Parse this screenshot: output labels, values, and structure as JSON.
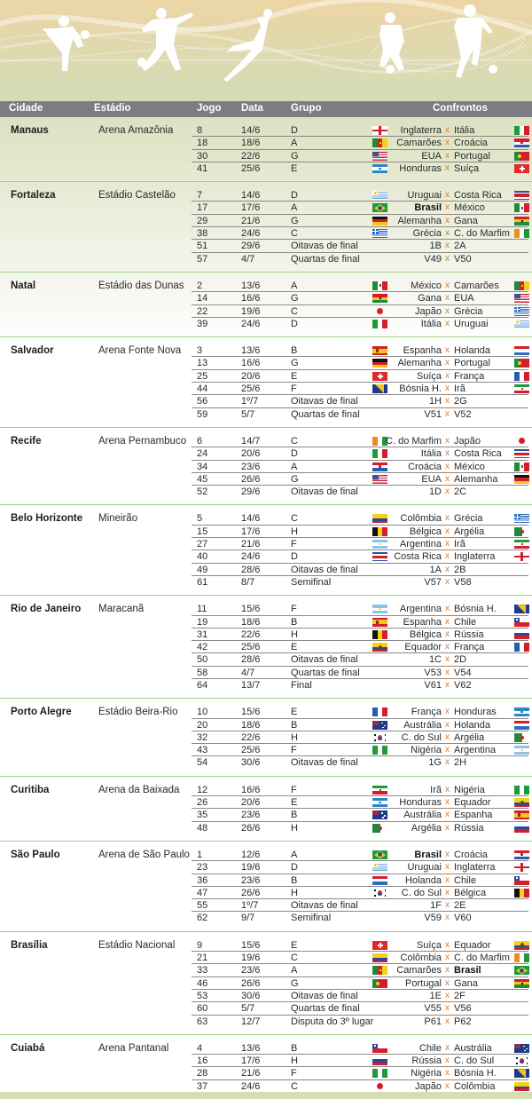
{
  "header": {
    "columns": [
      "Cidade",
      "Estádio",
      "Jogo",
      "Data",
      "Grupo",
      "Confrontos"
    ]
  },
  "vs_label": "x",
  "colors": {
    "header_bg": "#7c7c81",
    "separator": "#9fcf86",
    "vs": "#e07a2a",
    "row_line": "#8a8a8a"
  },
  "venues": [
    {
      "city": "Manaus",
      "stadium": "Arena Amazônia",
      "matches": [
        {
          "jogo": "8",
          "data": "14/6",
          "grupo": "D",
          "home": "Inglaterra",
          "away": "Itália",
          "home_flag": "england",
          "away_flag": "italy"
        },
        {
          "jogo": "18",
          "data": "18/6",
          "grupo": "A",
          "home": "Camarões",
          "away": "Croácia",
          "home_flag": "cameroon",
          "away_flag": "croatia"
        },
        {
          "jogo": "30",
          "data": "22/6",
          "grupo": "G",
          "home": "EUA",
          "away": "Portugal",
          "home_flag": "usa",
          "away_flag": "portugal"
        },
        {
          "jogo": "41",
          "data": "25/6",
          "grupo": "E",
          "home": "Honduras",
          "away": "Suíça",
          "home_flag": "honduras",
          "away_flag": "switzerland"
        }
      ]
    },
    {
      "city": "Fortaleza",
      "stadium": "Estádio Castelão",
      "matches": [
        {
          "jogo": "7",
          "data": "14/6",
          "grupo": "D",
          "home": "Uruguai",
          "away": "Costa Rica",
          "home_flag": "uruguay",
          "away_flag": "costarica"
        },
        {
          "jogo": "17",
          "data": "17/6",
          "grupo": "A",
          "home": "Brasil",
          "away": "México",
          "home_flag": "brazil",
          "away_flag": "mexico",
          "bold": "home"
        },
        {
          "jogo": "29",
          "data": "21/6",
          "grupo": "G",
          "home": "Alemanha",
          "away": "Gana",
          "home_flag": "germany",
          "away_flag": "ghana"
        },
        {
          "jogo": "38",
          "data": "24/6",
          "grupo": "C",
          "home": "Grécia",
          "away": "C. do Marfim",
          "home_flag": "greece",
          "away_flag": "ivorycoast"
        },
        {
          "jogo": "51",
          "data": "29/6",
          "grupo": "Oitavas de final",
          "home": "1B",
          "away": "2A"
        },
        {
          "jogo": "57",
          "data": "4/7",
          "grupo": "Quartas de final",
          "home": "V49",
          "away": "V50"
        }
      ]
    },
    {
      "city": "Natal",
      "stadium": "Estádio das Dunas",
      "matches": [
        {
          "jogo": "2",
          "data": "13/6",
          "grupo": "A",
          "home": "México",
          "away": "Camarões",
          "home_flag": "mexico",
          "away_flag": "cameroon"
        },
        {
          "jogo": "14",
          "data": "16/6",
          "grupo": "G",
          "home": "Gana",
          "away": "EUA",
          "home_flag": "ghana",
          "away_flag": "usa"
        },
        {
          "jogo": "22",
          "data": "19/6",
          "grupo": "C",
          "home": "Japão",
          "away": "Grécia",
          "home_flag": "japan",
          "away_flag": "greece"
        },
        {
          "jogo": "39",
          "data": "24/6",
          "grupo": "D",
          "home": "Itália",
          "away": "Uruguai",
          "home_flag": "italy",
          "away_flag": "uruguay"
        }
      ]
    },
    {
      "city": "Salvador",
      "stadium": "Arena Fonte Nova",
      "matches": [
        {
          "jogo": "3",
          "data": "13/6",
          "grupo": "B",
          "home": "Espanha",
          "away": "Holanda",
          "home_flag": "spain",
          "away_flag": "netherlands"
        },
        {
          "jogo": "13",
          "data": "16/6",
          "grupo": "G",
          "home": "Alemanha",
          "away": "Portugal",
          "home_flag": "germany",
          "away_flag": "portugal"
        },
        {
          "jogo": "25",
          "data": "20/6",
          "grupo": "E",
          "home": "Suíça",
          "away": "França",
          "home_flag": "switzerland",
          "away_flag": "france"
        },
        {
          "jogo": "44",
          "data": "25/6",
          "grupo": "F",
          "home": "Bósnia H.",
          "away": "Irã",
          "home_flag": "bosnia",
          "away_flag": "iran"
        },
        {
          "jogo": "56",
          "data": "1º/7",
          "grupo": "Oitavas de final",
          "home": "1H",
          "away": "2G"
        },
        {
          "jogo": "59",
          "data": "5/7",
          "grupo": "Quartas de final",
          "home": "V51",
          "away": "V52"
        }
      ]
    },
    {
      "city": "Recife",
      "stadium": "Arena Pernambuco",
      "matches": [
        {
          "jogo": "6",
          "data": "14/7",
          "grupo": "C",
          "home": "C. do Marfim",
          "away": "Japão",
          "home_flag": "ivorycoast",
          "away_flag": "japan"
        },
        {
          "jogo": "24",
          "data": "20/6",
          "grupo": "D",
          "home": "Itália",
          "away": "Costa Rica",
          "home_flag": "italy",
          "away_flag": "costarica"
        },
        {
          "jogo": "34",
          "data": "23/6",
          "grupo": "A",
          "home": "Croácia",
          "away": "México",
          "home_flag": "croatia",
          "away_flag": "mexico"
        },
        {
          "jogo": "45",
          "data": "26/6",
          "grupo": "G",
          "home": "EUA",
          "away": "Alemanha",
          "home_flag": "usa",
          "away_flag": "germany"
        },
        {
          "jogo": "52",
          "data": "29/6",
          "grupo": "Oitavas de final",
          "home": "1D",
          "away": "2C"
        }
      ]
    },
    {
      "city": "Belo Horizonte",
      "stadium": "Mineirão",
      "matches": [
        {
          "jogo": "5",
          "data": "14/6",
          "grupo": "C",
          "home": "Colômbia",
          "away": "Grécia",
          "home_flag": "colombia",
          "away_flag": "greece"
        },
        {
          "jogo": "15",
          "data": "17/6",
          "grupo": "H",
          "home": "Bélgica",
          "away": "Argélia",
          "home_flag": "belgium",
          "away_flag": "algeria"
        },
        {
          "jogo": "27",
          "data": "21/6",
          "grupo": "F",
          "home": "Argentina",
          "away": "Irã",
          "home_flag": "argentina",
          "away_flag": "iran"
        },
        {
          "jogo": "40",
          "data": "24/6",
          "grupo": "D",
          "home": "Costa Rica",
          "away": "Inglaterra",
          "home_flag": "costarica",
          "away_flag": "england"
        },
        {
          "jogo": "49",
          "data": "28/6",
          "grupo": "Oitavas de final",
          "home": "1A",
          "away": "2B"
        },
        {
          "jogo": "61",
          "data": "8/7",
          "grupo": "Semifinal",
          "home": "V57",
          "away": "V58"
        }
      ]
    },
    {
      "city": "Rio de Janeiro",
      "stadium": "Maracanã",
      "matches": [
        {
          "jogo": "11",
          "data": "15/6",
          "grupo": "F",
          "home": "Argentina",
          "away": "Bósnia H.",
          "home_flag": "argentina",
          "away_flag": "bosnia"
        },
        {
          "jogo": "19",
          "data": "18/6",
          "grupo": "B",
          "home": "Espanha",
          "away": "Chile",
          "home_flag": "spain",
          "away_flag": "chile"
        },
        {
          "jogo": "31",
          "data": "22/6",
          "grupo": "H",
          "home": "Bélgica",
          "away": "Rússia",
          "home_flag": "belgium",
          "away_flag": "russia"
        },
        {
          "jogo": "42",
          "data": "25/6",
          "grupo": "E",
          "home": "Equador",
          "away": "França",
          "home_flag": "ecuador",
          "away_flag": "france"
        },
        {
          "jogo": "50",
          "data": "28/6",
          "grupo": "Oitavas de final",
          "home": "1C",
          "away": "2D"
        },
        {
          "jogo": "58",
          "data": "4/7",
          "grupo": "Quartas de final",
          "home": "V53",
          "away": "V54"
        },
        {
          "jogo": "64",
          "data": "13/7",
          "grupo": "Final",
          "home": "V61",
          "away": "V62"
        }
      ]
    },
    {
      "city": "Porto Alegre",
      "stadium": "Estádio Beira-Rio",
      "matches": [
        {
          "jogo": "10",
          "data": "15/6",
          "grupo": "E",
          "home": "França",
          "away": "Honduras",
          "home_flag": "france",
          "away_flag": "honduras"
        },
        {
          "jogo": "20",
          "data": "18/6",
          "grupo": "B",
          "home": "Austrália",
          "away": "Holanda",
          "home_flag": "australia",
          "away_flag": "netherlands"
        },
        {
          "jogo": "32",
          "data": "22/6",
          "grupo": "H",
          "home": "C. do Sul",
          "away": "Argélia",
          "home_flag": "korea",
          "away_flag": "algeria"
        },
        {
          "jogo": "43",
          "data": "25/6",
          "grupo": "F",
          "home": "Nigéria",
          "away": "Argentina",
          "home_flag": "nigeria",
          "away_flag": "argentina"
        },
        {
          "jogo": "54",
          "data": "30/6",
          "grupo": "Oitavas de final",
          "home": "1G",
          "away": "2H"
        }
      ]
    },
    {
      "city": "Curitiba",
      "stadium": "Arena da Baixada",
      "matches": [
        {
          "jogo": "12",
          "data": "16/6",
          "grupo": "F",
          "home": "Irã",
          "away": "Nigéria",
          "home_flag": "iran",
          "away_flag": "nigeria"
        },
        {
          "jogo": "26",
          "data": "20/6",
          "grupo": "E",
          "home": "Honduras",
          "away": "Equador",
          "home_flag": "honduras",
          "away_flag": "ecuador"
        },
        {
          "jogo": "35",
          "data": "23/6",
          "grupo": "B",
          "home": "Austrália",
          "away": "Espanha",
          "home_flag": "australia",
          "away_flag": "spain"
        },
        {
          "jogo": "48",
          "data": "26/6",
          "grupo": "H",
          "home": "Argélia",
          "away": "Rússia",
          "home_flag": "algeria",
          "away_flag": "russia"
        }
      ]
    },
    {
      "city": "São Paulo",
      "stadium": "Arena de São Paulo",
      "matches": [
        {
          "jogo": "1",
          "data": "12/6",
          "grupo": "A",
          "home": "Brasil",
          "away": "Croácia",
          "home_flag": "brazil",
          "away_flag": "croatia",
          "bold": "home"
        },
        {
          "jogo": "23",
          "data": "19/6",
          "grupo": "D",
          "home": "Uruguai",
          "away": "Inglaterra",
          "home_flag": "uruguay",
          "away_flag": "england"
        },
        {
          "jogo": "36",
          "data": "23/6",
          "grupo": "B",
          "home": "Holanda",
          "away": "Chile",
          "home_flag": "netherlands",
          "away_flag": "chile"
        },
        {
          "jogo": "47",
          "data": "26/6",
          "grupo": "H",
          "home": "C. do Sul",
          "away": "Bélgica",
          "home_flag": "korea",
          "away_flag": "belgium"
        },
        {
          "jogo": "55",
          "data": "1º/7",
          "grupo": "Oitavas de final",
          "home": "1F",
          "away": "2E"
        },
        {
          "jogo": "62",
          "data": "9/7",
          "grupo": "Semifinal",
          "home": "V59",
          "away": "V60"
        }
      ]
    },
    {
      "city": "Brasília",
      "stadium": "Estádio Nacional",
      "matches": [
        {
          "jogo": "9",
          "data": "15/6",
          "grupo": "E",
          "home": "Suíça",
          "away": "Equador",
          "home_flag": "switzerland",
          "away_flag": "ecuador"
        },
        {
          "jogo": "21",
          "data": "19/6",
          "grupo": "C",
          "home": "Colômbia",
          "away": "C. do Marfim",
          "home_flag": "colombia",
          "away_flag": "ivorycoast"
        },
        {
          "jogo": "33",
          "data": "23/6",
          "grupo": "A",
          "home": "Camarões",
          "away": "Brasil",
          "home_flag": "cameroon",
          "away_flag": "brazil",
          "bold": "away"
        },
        {
          "jogo": "46",
          "data": "26/6",
          "grupo": "G",
          "home": "Portugal",
          "away": "Gana",
          "home_flag": "portugal",
          "away_flag": "ghana"
        },
        {
          "jogo": "53",
          "data": "30/6",
          "grupo": "Oitavas de final",
          "home": "1E",
          "away": "2F"
        },
        {
          "jogo": "60",
          "data": "5/7",
          "grupo": "Quartas de final",
          "home": "V55",
          "away": "V56"
        },
        {
          "jogo": "63",
          "data": "12/7",
          "grupo": "Disputa do 3º lugar",
          "home": "P61",
          "away": "P62"
        }
      ]
    },
    {
      "city": "Cuiabá",
      "stadium": "Arena Pantanal",
      "matches": [
        {
          "jogo": "4",
          "data": "13/6",
          "grupo": "B",
          "home": "Chile",
          "away": "Austrália",
          "home_flag": "chile",
          "away_flag": "australia"
        },
        {
          "jogo": "16",
          "data": "17/6",
          "grupo": "H",
          "home": "Rússia",
          "away": "C. do Sul",
          "home_flag": "russia",
          "away_flag": "korea"
        },
        {
          "jogo": "28",
          "data": "21/6",
          "grupo": "F",
          "home": "Nigéria",
          "away": "Bósnia H.",
          "home_flag": "nigeria",
          "away_flag": "bosnia"
        },
        {
          "jogo": "37",
          "data": "24/6",
          "grupo": "C",
          "home": "Japão",
          "away": "Colômbia",
          "home_flag": "japan",
          "away_flag": "colombia"
        }
      ]
    }
  ]
}
